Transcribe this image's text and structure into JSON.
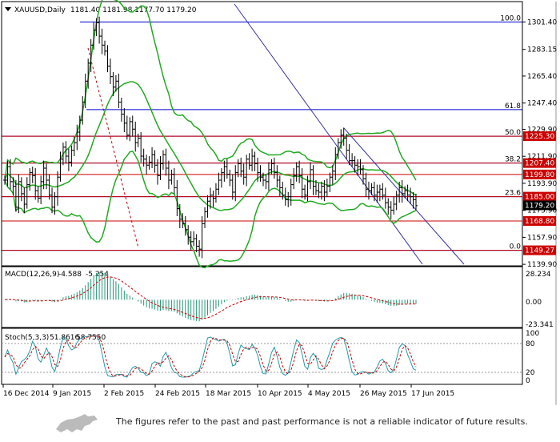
{
  "header": {
    "symbol": "XAUUSD,Daily",
    "ohlc": "1181.40 1181.98 1177.70 1179.20"
  },
  "chart_data": {
    "type": "candlestick",
    "symbol": "XAUUSD",
    "timeframe": "Daily",
    "ylim": [
      1138.9,
      1315
    ],
    "price_ticks": [
      1301.4,
      1283.15,
      1265.4,
      1247.4,
      1229.9,
      1211.9,
      1193.9,
      1175.9,
      1157.9,
      1139.9
    ],
    "x_labels": [
      "16 Dec 2014",
      "9 Jan 2015",
      "2 Feb 2015",
      "24 Feb 2015",
      "18 Mar 2015",
      "10 Apr 2015",
      "4 May 2015",
      "26 May 2015",
      "17 Jun 2015"
    ],
    "current_price": "1179.20",
    "fib_levels": [
      {
        "label": "100.0",
        "price": 1301.4
      },
      {
        "label": "61.8",
        "price": 1243.0
      },
      {
        "label": "50.0",
        "price": 1225.3
      },
      {
        "label": "38.2",
        "price": 1207.4
      },
      {
        "label": "23.6",
        "price": 1185.0
      },
      {
        "label": "0.0",
        "price": 1149.27
      }
    ],
    "horizontal_levels": [
      "1225.30",
      "1207.40",
      "1199.80",
      "1185.00",
      "1168.80",
      "1149.27"
    ],
    "close": [
      1196,
      1205,
      1195,
      1192,
      1178,
      1195,
      1187,
      1180,
      1193,
      1201,
      1199,
      1189,
      1184,
      1195,
      1204,
      1196,
      1186,
      1178,
      1185,
      1198,
      1210,
      1218,
      1212,
      1208,
      1216,
      1221,
      1228,
      1236,
      1248,
      1262,
      1274,
      1286,
      1296,
      1301,
      1292,
      1286,
      1282,
      1272,
      1265,
      1258,
      1262,
      1248,
      1240,
      1234,
      1226,
      1235,
      1230,
      1221,
      1224,
      1212,
      1210,
      1206,
      1208,
      1213,
      1206,
      1199,
      1207,
      1213,
      1204,
      1196,
      1200,
      1191,
      1177,
      1170,
      1167,
      1163,
      1158,
      1155,
      1157,
      1152,
      1150,
      1167,
      1175,
      1182,
      1186,
      1184,
      1190,
      1196,
      1201,
      1205,
      1200,
      1196,
      1188,
      1201,
      1207,
      1202,
      1198,
      1210,
      1206,
      1212,
      1207,
      1201,
      1198,
      1196,
      1195,
      1203,
      1207,
      1201,
      1196,
      1191,
      1186,
      1183,
      1185,
      1193,
      1199,
      1205,
      1199,
      1190,
      1186,
      1195,
      1203,
      1192,
      1189,
      1188,
      1192,
      1188,
      1192,
      1198,
      1202,
      1213,
      1221,
      1226,
      1224,
      1216,
      1209,
      1209,
      1206,
      1205,
      1203,
      1197,
      1190,
      1189,
      1191,
      1186,
      1188,
      1190,
      1186,
      1181,
      1178,
      1176,
      1180,
      1186,
      1191,
      1187,
      1189,
      1186,
      1185,
      1183,
      1179
    ],
    "macd": {
      "label": "MACD(12,26,9)",
      "main": "-4.588",
      "signal": "-5.254",
      "ticks": [
        "28.234",
        "0.00",
        "-23.341"
      ],
      "range": [
        -23.341,
        28.234
      ]
    },
    "stoch": {
      "label": "Stoch(5,3,3)",
      "k": "51.8616",
      "d": "58.7550",
      "ticks": [
        "100",
        "80",
        "20",
        "0"
      ]
    }
  },
  "footer": {
    "disclaimer": "The figures refer to the past and past performance is not a reliable indicator of future results."
  },
  "colors": {
    "fib": "#0000cc",
    "level": "#cc0000",
    "bands": "#22aa22",
    "macd": "#229977",
    "signal": "#cc0000",
    "stoch_k": "#2299aa",
    "stoch_d": "#cc0000"
  }
}
